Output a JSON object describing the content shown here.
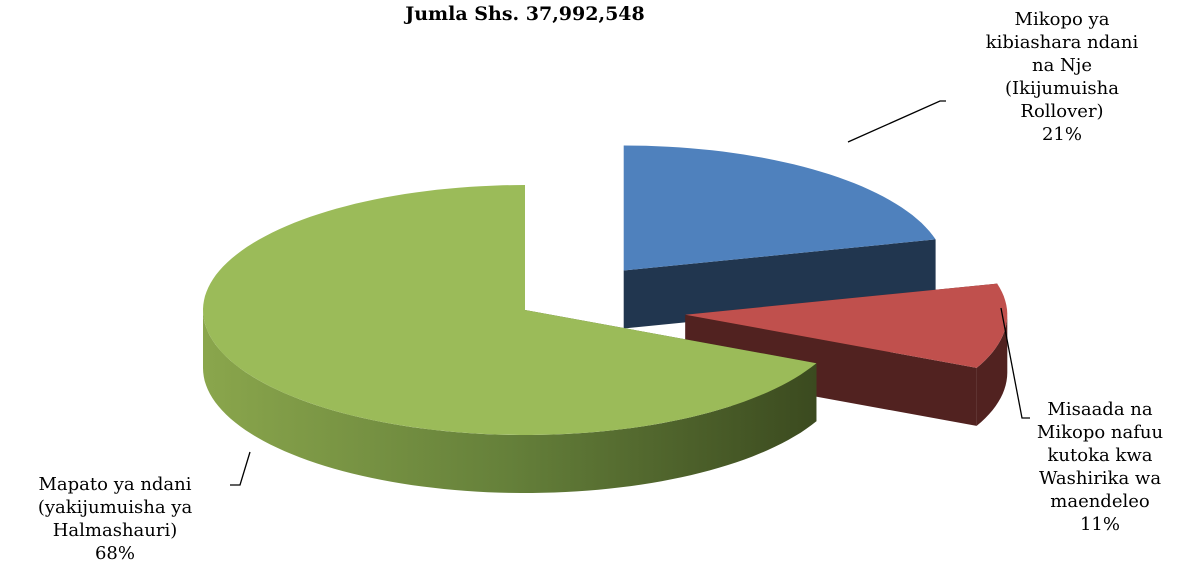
{
  "chart_data": {
    "type": "pie3d",
    "title": "Jumla Shs. 37,992,548",
    "categories": [
      [
        "Mikopo ya",
        "kibiashara ndani",
        "na Nje",
        "(Ikijumuisha",
        "Rollover)"
      ],
      [
        "Misaada na",
        "Mikopo nafuu",
        "kutoka kwa",
        "Washirika wa",
        "maendeleo"
      ],
      [
        "Mapato ya ndani",
        "(yakijumuisha ya",
        "Halmashauri)"
      ]
    ],
    "values": [
      21,
      11,
      68
    ],
    "value_labels": [
      "21%",
      "11%",
      "68%"
    ],
    "colors": [
      "#4f81bd",
      "#c0504d",
      "#9bbb59"
    ]
  }
}
